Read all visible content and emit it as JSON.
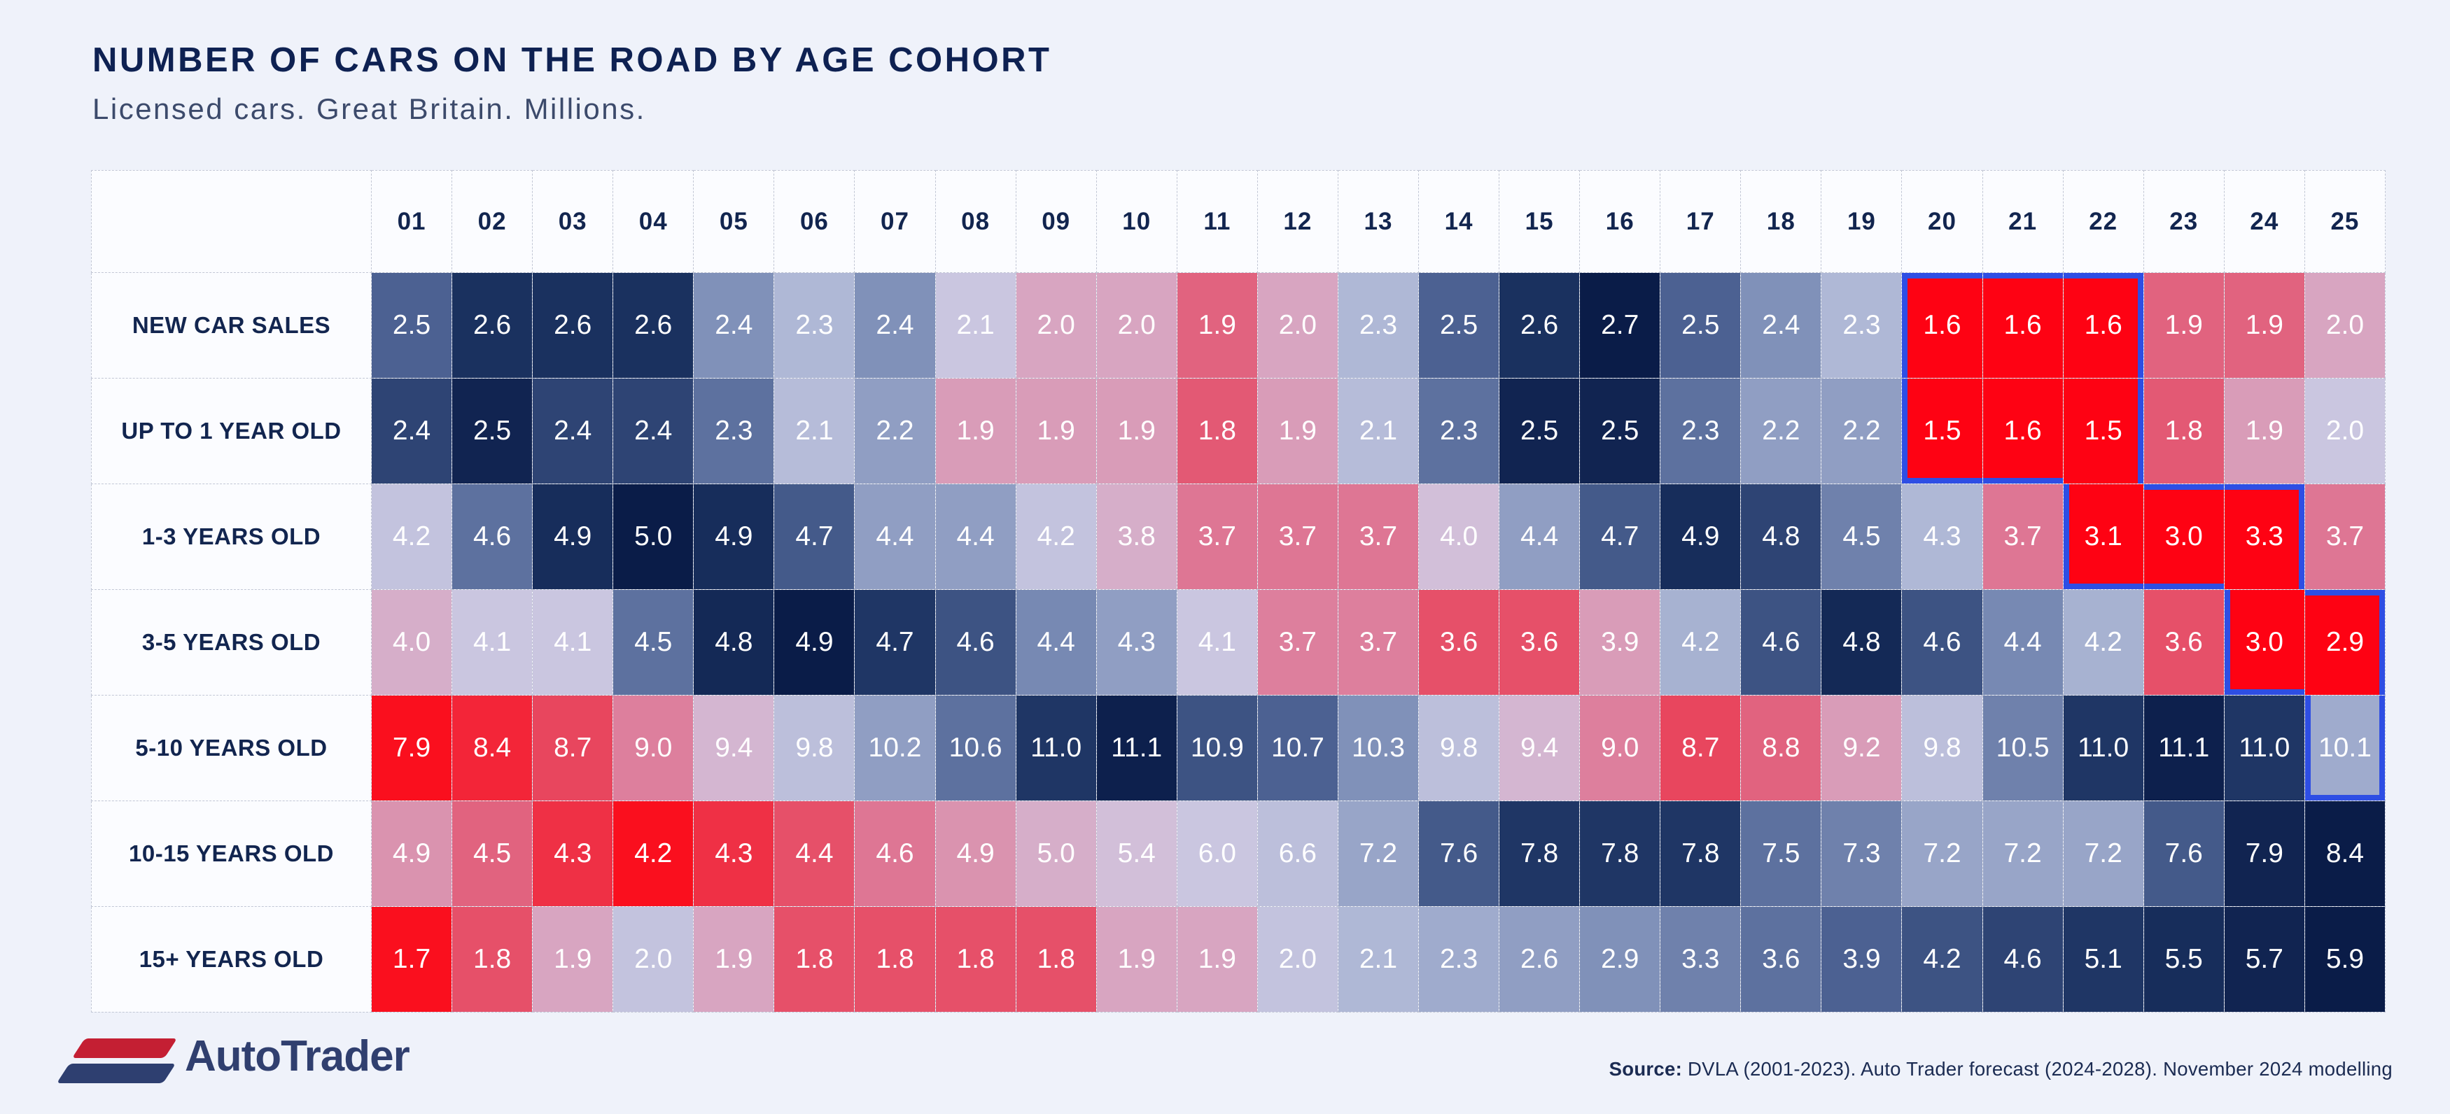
{
  "header": {
    "title": "NUMBER OF CARS ON THE ROAD BY AGE COHORT",
    "subtitle": "Licensed cars. Great Britain. Millions."
  },
  "chart_data": {
    "type": "heatmap",
    "title": "NUMBER OF CARS ON THE ROAD BY AGE COHORT",
    "unit": "millions of licensed cars",
    "columns": [
      "01",
      "02",
      "03",
      "04",
      "05",
      "06",
      "07",
      "08",
      "09",
      "10",
      "11",
      "12",
      "13",
      "14",
      "15",
      "16",
      "17",
      "18",
      "19",
      "20",
      "21",
      "22",
      "23",
      "24",
      "25"
    ],
    "rows": [
      {
        "label": "NEW CAR SALES",
        "values": [
          2.5,
          2.6,
          2.6,
          2.6,
          2.4,
          2.3,
          2.4,
          2.1,
          2.0,
          2.0,
          1.9,
          2.0,
          2.3,
          2.5,
          2.6,
          2.7,
          2.5,
          2.4,
          2.3,
          1.6,
          1.6,
          1.6,
          1.9,
          1.9,
          2.0
        ]
      },
      {
        "label": "UP TO 1 YEAR OLD",
        "values": [
          2.4,
          2.5,
          2.4,
          2.4,
          2.3,
          2.1,
          2.2,
          1.9,
          1.9,
          1.9,
          1.8,
          1.9,
          2.1,
          2.3,
          2.5,
          2.5,
          2.3,
          2.2,
          2.2,
          1.5,
          1.6,
          1.5,
          1.8,
          1.9,
          2.0
        ]
      },
      {
        "label": "1-3 YEARS OLD",
        "values": [
          4.2,
          4.6,
          4.9,
          5.0,
          4.9,
          4.7,
          4.4,
          4.4,
          4.2,
          3.8,
          3.7,
          3.7,
          3.7,
          4.0,
          4.4,
          4.7,
          4.9,
          4.8,
          4.5,
          4.3,
          3.7,
          3.1,
          3.0,
          3.3,
          3.7
        ]
      },
      {
        "label": "3-5 YEARS OLD",
        "values": [
          4.0,
          4.1,
          4.1,
          4.5,
          4.8,
          4.9,
          4.7,
          4.6,
          4.4,
          4.3,
          4.1,
          3.7,
          3.7,
          3.6,
          3.6,
          3.9,
          4.2,
          4.6,
          4.8,
          4.6,
          4.4,
          4.2,
          3.6,
          3.0,
          2.9
        ]
      },
      {
        "label": "5-10 YEARS OLD",
        "values": [
          7.9,
          8.4,
          8.7,
          9.0,
          9.4,
          9.8,
          10.2,
          10.6,
          11.0,
          11.1,
          10.9,
          10.7,
          10.3,
          9.8,
          9.4,
          9.0,
          8.7,
          8.8,
          9.2,
          9.8,
          10.5,
          11.0,
          11.1,
          11.0,
          10.1
        ]
      },
      {
        "label": "10-15 YEARS OLD",
        "values": [
          4.9,
          4.5,
          4.3,
          4.2,
          4.3,
          4.4,
          4.6,
          4.9,
          5.0,
          5.4,
          6.0,
          6.6,
          7.2,
          7.6,
          7.8,
          7.8,
          7.8,
          7.5,
          7.3,
          7.2,
          7.2,
          7.2,
          7.6,
          7.9,
          8.4
        ]
      },
      {
        "label": "15+ YEARS OLD",
        "values": [
          1.7,
          1.8,
          1.9,
          2.0,
          1.9,
          1.8,
          1.8,
          1.8,
          1.8,
          1.9,
          1.9,
          2.0,
          2.1,
          2.3,
          2.6,
          2.9,
          3.3,
          3.6,
          3.9,
          4.2,
          4.6,
          5.1,
          5.5,
          5.7,
          5.9
        ]
      }
    ],
    "value_format": "one_decimal",
    "color_scale": {
      "mode": "per-row rank, diverging red-to-navy",
      "stops": [
        [
          0.0,
          "#FA0F1E"
        ],
        [
          0.1,
          "#E8445C"
        ],
        [
          0.2,
          "#DE7290"
        ],
        [
          0.3,
          "#D9A0BC"
        ],
        [
          0.4,
          "#CFC9E2"
        ],
        [
          0.5,
          "#AFB8D6"
        ],
        [
          0.62,
          "#8293BB"
        ],
        [
          0.75,
          "#4C6192"
        ],
        [
          0.88,
          "#1D3463"
        ],
        [
          1.0,
          "#0A1C48"
        ]
      ]
    },
    "highlight": {
      "outline_color": "#2E4EE4",
      "hot_color": "#FE0213",
      "cells": [
        {
          "row": 0,
          "cols": [
            19,
            20,
            21
          ],
          "hot": true
        },
        {
          "row": 1,
          "cols": [
            19,
            20,
            21
          ],
          "hot": true
        },
        {
          "row": 2,
          "cols": [
            21,
            22,
            23
          ],
          "hot": true
        },
        {
          "row": 3,
          "cols": [
            23,
            24
          ],
          "hot": true
        },
        {
          "row": 4,
          "cols": [
            24
          ],
          "hot": false
        }
      ]
    },
    "grid": true,
    "legend": "none"
  },
  "footer": {
    "logo_text": "AutoTrader",
    "logo_red": "#C41F33",
    "logo_navy": "#2E3F70",
    "source_prefix": "Source:",
    "source_text": " DVLA (2001-2023). Auto Trader forecast (2024-2028). November 2024 modelling"
  }
}
